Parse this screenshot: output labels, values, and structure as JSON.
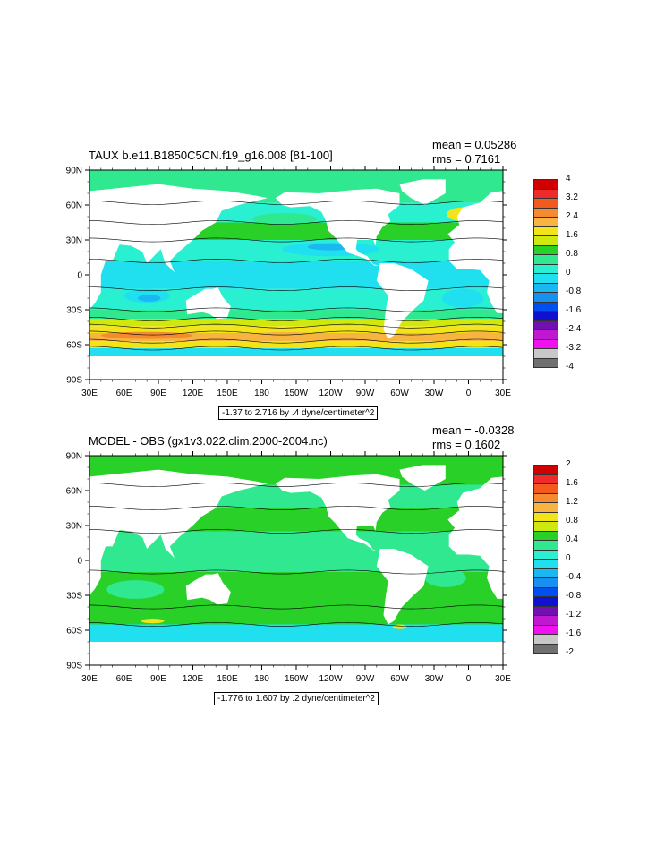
{
  "charts": [
    {
      "title": "TAUX b.e11.B1850C5CN.f19_g16.008 [81-100]",
      "mean_label": "mean = 0.05286",
      "rms_label": "rms = 0.7161",
      "range_label": "-1.37 to 2.716 by .4 dyne/centimeter^2",
      "lat_ticks": [
        "90N",
        "60N",
        "30N",
        "0",
        "30S",
        "60S",
        "90S"
      ],
      "lon_ticks": [
        "30E",
        "60E",
        "90E",
        "120E",
        "150E",
        "180",
        "150W",
        "120W",
        "90W",
        "60W",
        "30W",
        "0",
        "30E"
      ],
      "colorbar": {
        "labels": [
          "4",
          "3.2",
          "2.4",
          "1.6",
          "0.8",
          "0",
          "-0.8",
          "-1.6",
          "-2.4",
          "-3.2",
          "-4"
        ],
        "colors": [
          "#d00000",
          "#ee2a2a",
          "#f25a1e",
          "#f58a2e",
          "#f8b440",
          "#f2e418",
          "#cfe80e",
          "#28d028",
          "#30e890",
          "#28f0d0",
          "#20e0f0",
          "#1ab8f0",
          "#1890f0",
          "#0050f0",
          "#1010d0",
          "#7010b0",
          "#c018d0",
          "#f010f0",
          "#c8c8c8",
          "#707070"
        ]
      }
    },
    {
      "title": "MODEL - OBS (gx1v3.022.clim.2000-2004.nc)",
      "mean_label": "mean = -0.0328",
      "rms_label": "rms = 0.1602",
      "range_label": "-1.776 to 1.607 by .2 dyne/centimeter^2",
      "lat_ticks": [
        "90N",
        "60N",
        "30N",
        "0",
        "30S",
        "60S",
        "90S"
      ],
      "lon_ticks": [
        "30E",
        "60E",
        "90E",
        "120E",
        "150E",
        "180",
        "150W",
        "120W",
        "90W",
        "60W",
        "30W",
        "0",
        "30E"
      ],
      "colorbar": {
        "labels": [
          "2",
          "1.6",
          "1.2",
          "0.8",
          "0.4",
          "0",
          "-0.4",
          "-0.8",
          "-1.2",
          "-1.6",
          "-2"
        ],
        "colors": [
          "#d00000",
          "#ee2a2a",
          "#f25a1e",
          "#f58a2e",
          "#f8b440",
          "#f2e418",
          "#cfe80e",
          "#28d028",
          "#30e890",
          "#28f0d0",
          "#20e0f0",
          "#1ab8f0",
          "#1890f0",
          "#0050f0",
          "#1010d0",
          "#7010b0",
          "#c018d0",
          "#f010f0",
          "#c8c8c8",
          "#707070"
        ]
      }
    }
  ],
  "chart_data": [
    {
      "type": "heatmap",
      "title": "TAUX b.e11.B1850C5CN.f19_g16.008 [81-100]",
      "mean": 0.05286,
      "rms": 0.7161,
      "contour_range": "-1.37 to 2.716 by .4 dyne/centimeter^2",
      "x_ticks": [
        "30E",
        "60E",
        "90E",
        "120E",
        "150E",
        "180",
        "150W",
        "120W",
        "90W",
        "60W",
        "30W",
        "0",
        "30E"
      ],
      "y_ticks": [
        "90N",
        "60N",
        "30N",
        "0",
        "30S",
        "60S",
        "90S"
      ],
      "xlim": [
        30,
        390
      ],
      "ylim": [
        -90,
        90
      ],
      "colorbar_labels": [
        4,
        3.2,
        2.4,
        1.6,
        0.8,
        0,
        -0.8,
        -1.6,
        -2.4,
        -3.2,
        -4
      ]
    },
    {
      "type": "heatmap",
      "title": "MODEL - OBS (gx1v3.022.clim.2000-2004.nc)",
      "mean": -0.0328,
      "rms": 0.1602,
      "contour_range": "-1.776 to 1.607 by .2 dyne/centimeter^2",
      "x_ticks": [
        "30E",
        "60E",
        "90E",
        "120E",
        "150E",
        "180",
        "150W",
        "120W",
        "90W",
        "60W",
        "30W",
        "0",
        "30E"
      ],
      "y_ticks": [
        "90N",
        "60N",
        "30N",
        "0",
        "30S",
        "60S",
        "90S"
      ],
      "xlim": [
        30,
        390
      ],
      "ylim": [
        -90,
        90
      ],
      "colorbar_labels": [
        2,
        1.6,
        1.2,
        0.8,
        0.4,
        0,
        -0.4,
        -0.8,
        -1.2,
        -1.6,
        -2
      ]
    }
  ]
}
